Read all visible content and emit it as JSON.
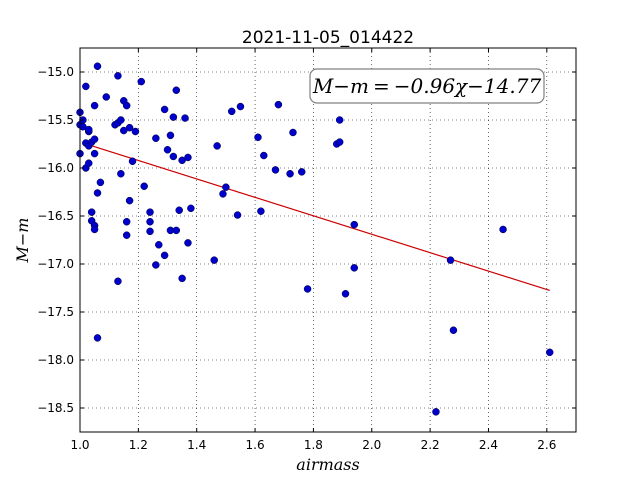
{
  "chart_data": {
    "type": "scatter",
    "title": "2021-11-05_014422",
    "xlabel": "airmass",
    "ylabel": "M−m",
    "xlim": [
      1.0,
      2.7
    ],
    "ylim": [
      -18.75,
      -14.75
    ],
    "ylim_note": "inverted",
    "xticks": [
      1.0,
      1.2,
      1.4,
      1.6,
      1.8,
      2.0,
      2.2,
      2.4,
      2.6
    ],
    "xtick_labels": [
      "1.0",
      "1.2",
      "1.4",
      "1.6",
      "1.8",
      "2.0",
      "2.2",
      "2.4",
      "2.6"
    ],
    "yticks": [
      -15.0,
      -15.5,
      -16.0,
      -16.5,
      -17.0,
      -17.5,
      -18.0,
      -18.5
    ],
    "ytick_labels": [
      "−15.0",
      "−15.5",
      "−16.0",
      "−16.5",
      "−17.0",
      "−17.5",
      "−18.0",
      "−18.5"
    ],
    "grid": true,
    "annotation": "M−m = −0.96χ−14.77",
    "marker_color": "#0000cc",
    "fit_color": "#cc0000",
    "fit": {
      "slope": -0.96,
      "intercept": -14.77,
      "x": [
        1.02,
        2.61
      ]
    },
    "points": [
      [
        1.0,
        -15.85
      ],
      [
        1.0,
        -15.42
      ],
      [
        1.0,
        -15.55
      ],
      [
        1.01,
        -15.5
      ],
      [
        1.01,
        -15.57
      ],
      [
        1.02,
        -15.15
      ],
      [
        1.02,
        -15.74
      ],
      [
        1.02,
        -16.0
      ],
      [
        1.03,
        -15.62
      ],
      [
        1.03,
        -15.95
      ],
      [
        1.03,
        -15.6
      ],
      [
        1.03,
        -15.77
      ],
      [
        1.04,
        -15.73
      ],
      [
        1.04,
        -16.46
      ],
      [
        1.04,
        -16.55
      ],
      [
        1.05,
        -15.35
      ],
      [
        1.05,
        -15.85
      ],
      [
        1.05,
        -16.6
      ],
      [
        1.05,
        -16.64
      ],
      [
        1.05,
        -15.7
      ],
      [
        1.06,
        -16.26
      ],
      [
        1.06,
        -14.94
      ],
      [
        1.06,
        -17.77
      ],
      [
        1.07,
        -16.15
      ],
      [
        1.09,
        -15.26
      ],
      [
        1.12,
        -15.55
      ],
      [
        1.13,
        -15.53
      ],
      [
        1.13,
        -15.04
      ],
      [
        1.13,
        -17.18
      ],
      [
        1.14,
        -15.5
      ],
      [
        1.14,
        -16.06
      ],
      [
        1.15,
        -15.3
      ],
      [
        1.15,
        -15.61
      ],
      [
        1.16,
        -15.35
      ],
      [
        1.16,
        -16.56
      ],
      [
        1.16,
        -16.7
      ],
      [
        1.17,
        -16.34
      ],
      [
        1.17,
        -15.58
      ],
      [
        1.18,
        -15.93
      ],
      [
        1.19,
        -15.62
      ],
      [
        1.21,
        -15.1
      ],
      [
        1.22,
        -16.19
      ],
      [
        1.24,
        -16.46
      ],
      [
        1.24,
        -16.56
      ],
      [
        1.24,
        -16.66
      ],
      [
        1.26,
        -15.69
      ],
      [
        1.26,
        -17.01
      ],
      [
        1.27,
        -16.8
      ],
      [
        1.29,
        -15.39
      ],
      [
        1.29,
        -16.91
      ],
      [
        1.3,
        -15.81
      ],
      [
        1.31,
        -15.66
      ],
      [
        1.31,
        -16.65
      ],
      [
        1.32,
        -15.47
      ],
      [
        1.32,
        -15.88
      ],
      [
        1.33,
        -15.19
      ],
      [
        1.33,
        -16.65
      ],
      [
        1.34,
        -16.44
      ],
      [
        1.35,
        -15.92
      ],
      [
        1.35,
        -17.15
      ],
      [
        1.36,
        -15.48
      ],
      [
        1.37,
        -15.89
      ],
      [
        1.37,
        -16.78
      ],
      [
        1.38,
        -16.42
      ],
      [
        1.46,
        -16.96
      ],
      [
        1.47,
        -15.77
      ],
      [
        1.49,
        -16.27
      ],
      [
        1.5,
        -16.2
      ],
      [
        1.52,
        -15.41
      ],
      [
        1.54,
        -16.49
      ],
      [
        1.55,
        -15.36
      ],
      [
        1.61,
        -15.68
      ],
      [
        1.62,
        -16.45
      ],
      [
        1.63,
        -15.87
      ],
      [
        1.67,
        -16.02
      ],
      [
        1.68,
        -15.34
      ],
      [
        1.72,
        -16.06
      ],
      [
        1.73,
        -15.63
      ],
      [
        1.76,
        -16.04
      ],
      [
        1.78,
        -17.26
      ],
      [
        1.88,
        -15.75
      ],
      [
        1.89,
        -15.73
      ],
      [
        1.89,
        -15.5
      ],
      [
        1.91,
        -17.31
      ],
      [
        1.94,
        -16.59
      ],
      [
        1.94,
        -17.04
      ],
      [
        2.22,
        -18.54
      ],
      [
        2.27,
        -16.96
      ],
      [
        2.28,
        -17.69
      ],
      [
        2.45,
        -16.64
      ],
      [
        2.61,
        -17.92
      ]
    ]
  }
}
